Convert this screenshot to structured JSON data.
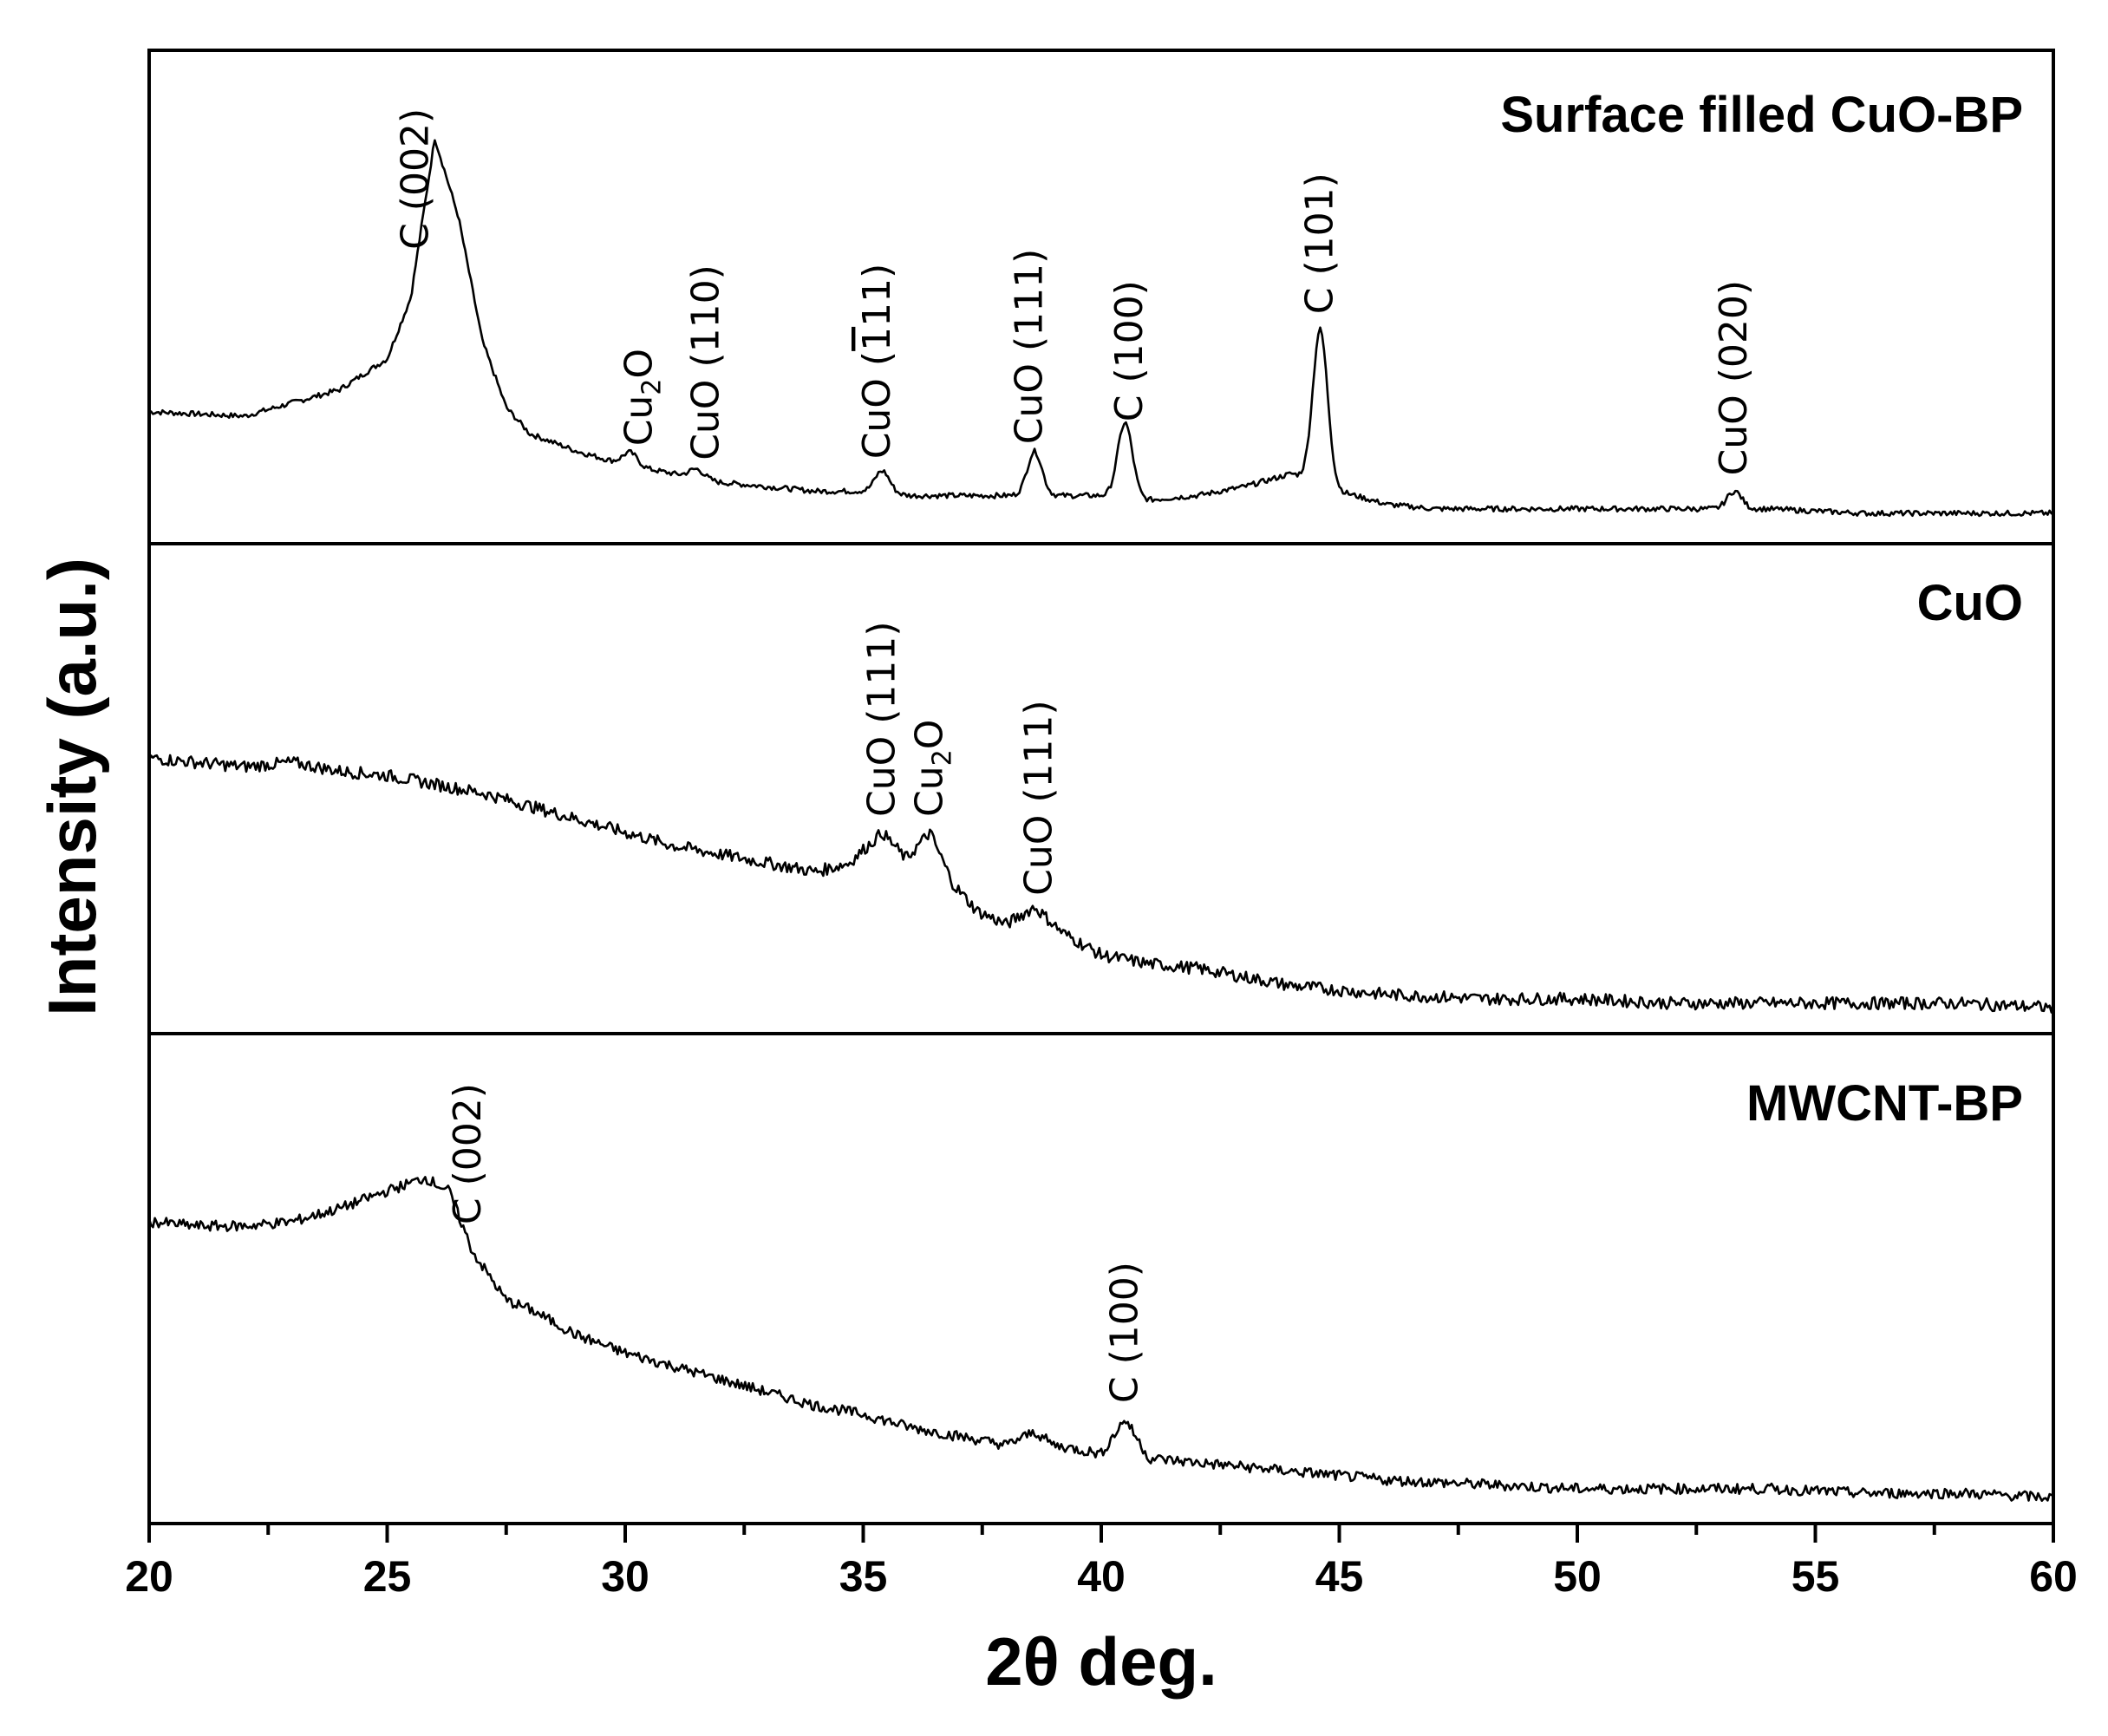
{
  "chart_data": {
    "type": "line",
    "title": "",
    "xlabel": "2θ deg.",
    "ylabel": "Intensity (a.u.)",
    "xlim": [
      20,
      60
    ],
    "xticks": [
      20,
      25,
      30,
      35,
      40,
      45,
      50,
      55,
      60
    ],
    "ytick_labels": false,
    "panels": [
      {
        "name": "Surface filled CuO-BP",
        "baseline": 0.16,
        "peak_scale": 0.86,
        "points": [
          [
            20,
            0.24
          ],
          [
            22,
            0.23
          ],
          [
            23,
            0.26
          ],
          [
            24,
            0.29
          ],
          [
            25,
            0.36
          ],
          [
            25.5,
            0.5
          ],
          [
            26,
            0.86
          ],
          [
            26.5,
            0.68
          ],
          [
            27,
            0.4
          ],
          [
            27.5,
            0.25
          ],
          [
            28,
            0.19
          ],
          [
            29,
            0.15
          ],
          [
            30,
            0.12
          ],
          [
            31,
            0.1
          ],
          [
            32,
            0.08
          ],
          [
            33,
            0.07
          ],
          [
            34,
            0.06
          ],
          [
            35,
            0.06
          ],
          [
            36,
            0.05
          ],
          [
            37,
            0.05
          ],
          [
            38,
            0.05
          ],
          [
            39,
            0.05
          ],
          [
            40,
            0.05
          ],
          [
            41,
            0.04
          ],
          [
            42,
            0.05
          ],
          [
            43,
            0.07
          ],
          [
            44,
            0.1
          ],
          [
            45,
            0.06
          ],
          [
            46,
            0.03
          ],
          [
            47,
            0.02
          ],
          [
            48,
            0.02
          ],
          [
            50,
            0.02
          ],
          [
            52,
            0.02
          ],
          [
            54,
            0.02
          ],
          [
            56,
            0.01
          ],
          [
            58,
            0.01
          ],
          [
            60,
            0.01
          ]
        ],
        "peaks": [
          {
            "x": 30.1,
            "h": 0.03
          },
          {
            "x": 31.5,
            "h": 0.02
          },
          {
            "x": 35.4,
            "h": 0.05
          },
          {
            "x": 38.6,
            "h": 0.1
          },
          {
            "x": 40.5,
            "h": 0.17
          },
          {
            "x": 44.6,
            "h": 0.35
          },
          {
            "x": 53.3,
            "h": 0.04
          }
        ],
        "labels": [
          {
            "x": 25.6,
            "text": "C (002)"
          },
          {
            "x": 30.3,
            "text": "Cu",
            "sub": "2",
            "after": "O"
          },
          {
            "x": 31.7,
            "text": "CuO (110)"
          },
          {
            "x": 35.3,
            "text": "CuO (",
            "bar": "1",
            "after": "11)"
          },
          {
            "x": 38.5,
            "text": "CuO (111)"
          },
          {
            "x": 40.6,
            "text": "C (100)"
          },
          {
            "x": 44.6,
            "text": "C (101)"
          },
          {
            "x": 53.3,
            "text": "CuO (020)"
          }
        ]
      },
      {
        "name": "CuO",
        "points": [
          [
            20,
            0.57
          ],
          [
            21,
            0.56
          ],
          [
            22,
            0.55
          ],
          [
            23,
            0.56
          ],
          [
            24,
            0.54
          ],
          [
            25,
            0.53
          ],
          [
            26,
            0.51
          ],
          [
            27,
            0.49
          ],
          [
            28,
            0.46
          ],
          [
            29,
            0.43
          ],
          [
            30,
            0.4
          ],
          [
            31,
            0.37
          ],
          [
            32,
            0.35
          ],
          [
            33,
            0.33
          ],
          [
            34,
            0.31
          ],
          [
            34.7,
            0.33
          ],
          [
            35.4,
            0.4
          ],
          [
            35.9,
            0.34
          ],
          [
            36.4,
            0.4
          ],
          [
            36.9,
            0.28
          ],
          [
            37.4,
            0.22
          ],
          [
            38,
            0.19
          ],
          [
            38.6,
            0.23
          ],
          [
            39.2,
            0.17
          ],
          [
            40,
            0.12
          ],
          [
            41,
            0.1
          ],
          [
            42,
            0.09
          ],
          [
            43,
            0.07
          ],
          [
            44,
            0.05
          ],
          [
            45,
            0.04
          ],
          [
            46,
            0.03
          ],
          [
            48,
            0.02
          ],
          [
            50,
            0.02
          ],
          [
            52,
            0.01
          ],
          [
            54,
            0.01
          ],
          [
            56,
            0.01
          ],
          [
            58,
            0.01
          ],
          [
            60,
            0.0
          ]
        ],
        "labels": [
          {
            "x": 35.4,
            "text": "CuO (111)"
          },
          {
            "x": 36.4,
            "text": "Cu",
            "sub": "2",
            "after": "O"
          },
          {
            "x": 38.7,
            "text": "CuO (111)"
          }
        ]
      },
      {
        "name": "MWCNT-BP",
        "points": [
          [
            20,
            0.63
          ],
          [
            21,
            0.62
          ],
          [
            22,
            0.62
          ],
          [
            23,
            0.63
          ],
          [
            24,
            0.66
          ],
          [
            25,
            0.7
          ],
          [
            25.8,
            0.73
          ],
          [
            26.3,
            0.7
          ],
          [
            26.8,
            0.56
          ],
          [
            27.5,
            0.45
          ],
          [
            28,
            0.43
          ],
          [
            29,
            0.37
          ],
          [
            30,
            0.33
          ],
          [
            31,
            0.3
          ],
          [
            32,
            0.27
          ],
          [
            33,
            0.24
          ],
          [
            34,
            0.21
          ],
          [
            35,
            0.19
          ],
          [
            36,
            0.16
          ],
          [
            37,
            0.14
          ],
          [
            38,
            0.12
          ],
          [
            38.6,
            0.15
          ],
          [
            39,
            0.12
          ],
          [
            40,
            0.1
          ],
          [
            40.5,
            0.18
          ],
          [
            41,
            0.09
          ],
          [
            42,
            0.08
          ],
          [
            43,
            0.07
          ],
          [
            44,
            0.06
          ],
          [
            45,
            0.05
          ],
          [
            46,
            0.04
          ],
          [
            48,
            0.03
          ],
          [
            50,
            0.02
          ],
          [
            52,
            0.02
          ],
          [
            54,
            0.02
          ],
          [
            56,
            0.01
          ],
          [
            58,
            0.01
          ],
          [
            60,
            0.0
          ]
        ],
        "labels": [
          {
            "x": 26.7,
            "text": "C (002)"
          },
          {
            "x": 40.5,
            "text": "C (100)"
          }
        ]
      }
    ]
  }
}
